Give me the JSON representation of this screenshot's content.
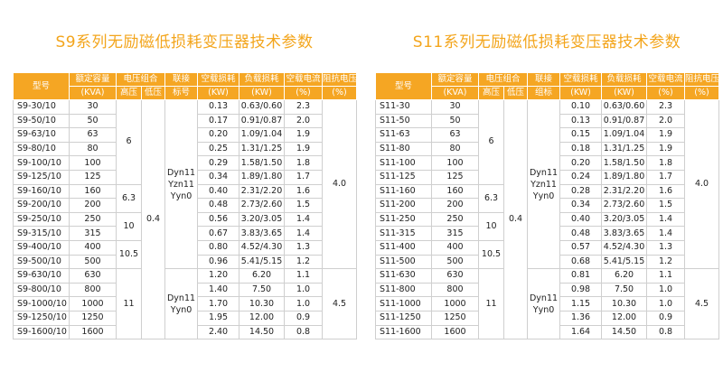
{
  "tables": [
    {
      "title": "S9系列无励磁低损耗变压器技术参数",
      "header": {
        "model": "型号",
        "capacity": "额定容量",
        "capacity_unit": "(KVA)",
        "voltage_group": "电压组合",
        "hv": "高压",
        "lv": "低压",
        "coupling": "联接",
        "coupling_sub": "标号",
        "noload": "空载损耗",
        "noload_unit": "(KW)",
        "load": "负载损耗",
        "load_unit": "(KW)",
        "current": "空载电流",
        "current_unit": "(%)",
        "impedance": "阻抗电压",
        "impedance_unit": "(%)"
      },
      "rows": [
        [
          "S9-30/10",
          "30",
          "0.13",
          "0.63/0.60",
          "2.3"
        ],
        [
          "S9-50/10",
          "50",
          "0.17",
          "0.91/0.87",
          "2.0"
        ],
        [
          "S9-63/10",
          "63",
          "0.20",
          "1.09/1.04",
          "1.9"
        ],
        [
          "S9-80/10",
          "80",
          "0.25",
          "1.31/1.25",
          "1.9"
        ],
        [
          "S9-100/10",
          "100",
          "0.29",
          "1.58/1.50",
          "1.8"
        ],
        [
          "S9-125/10",
          "125",
          "0.34",
          "1.89/1.80",
          "1.7"
        ],
        [
          "S9-160/10",
          "160",
          "0.40",
          "2.31/2.20",
          "1.6"
        ],
        [
          "S9-200/10",
          "200",
          "0.48",
          "2.73/2.60",
          "1.5"
        ],
        [
          "S9-250/10",
          "250",
          "0.56",
          "3.20/3.05",
          "1.4"
        ],
        [
          "S9-315/10",
          "315",
          "0.67",
          "3.83/3.65",
          "1.4"
        ],
        [
          "S9-400/10",
          "400",
          "0.80",
          "4.52/4.30",
          "1.3"
        ],
        [
          "S9-500/10",
          "500",
          "0.96",
          "5.41/5.15",
          "1.2"
        ],
        [
          "S9-630/10",
          "630",
          "1.20",
          "6.20",
          "1.1"
        ],
        [
          "S9-800/10",
          "800",
          "1.40",
          "7.50",
          "1.0"
        ],
        [
          "S9-1000/10",
          "1000",
          "1.70",
          "10.30",
          "1.0"
        ],
        [
          "S9-1250/10",
          "1250",
          "1.95",
          "12.00",
          "0.9"
        ],
        [
          "S9-1600/10",
          "1600",
          "2.40",
          "14.50",
          "0.8"
        ]
      ],
      "merged": {
        "hv_6": "6",
        "hv_63": "6.3",
        "hv_10": "10",
        "hv_105": "10.5",
        "hv_11": "11",
        "lv": "0.4",
        "coupling_a_1": "Dyn11",
        "coupling_a_2": "Yzn11",
        "coupling_a_3": "Yyn0",
        "coupling_b_1": "Dyn11",
        "coupling_b_2": "Yyn0",
        "impedance_a": "4.0",
        "impedance_b": "4.5"
      }
    },
    {
      "title": "S11系列无励磁低损耗变压器技术参数",
      "header": {
        "model": "型号",
        "capacity": "额定容量",
        "capacity_unit": "(KVA)",
        "voltage_group": "电压组合",
        "hv": "高压",
        "lv": "低压",
        "coupling": "联接",
        "coupling_sub": "组标",
        "noload": "空载损耗",
        "noload_unit": "(KW)",
        "load": "负载损耗",
        "load_unit": "(KW)",
        "current": "空载电流",
        "current_unit": "(%)",
        "impedance": "阻抗电压",
        "impedance_unit": "(%)"
      },
      "rows": [
        [
          "S11-30",
          "30",
          "0.10",
          "0.63/0.60",
          "2.3"
        ],
        [
          "S11-50",
          "50",
          "0.13",
          "0.91/0.87",
          "2.0"
        ],
        [
          "S11-63",
          "63",
          "0.15",
          "1.09/1.04",
          "1.9"
        ],
        [
          "S11-80",
          "80",
          "0.18",
          "1.31/1.25",
          "1.9"
        ],
        [
          "S11-100",
          "100",
          "0.20",
          "1.58/1.50",
          "1.8"
        ],
        [
          "S11-125",
          "125",
          "0.24",
          "1.89/1.80",
          "1.7"
        ],
        [
          "S11-160",
          "160",
          "0.28",
          "2.31/2.20",
          "1.6"
        ],
        [
          "S11-200",
          "200",
          "0.34",
          "2.73/2.60",
          "1.5"
        ],
        [
          "S11-250",
          "250",
          "0.40",
          "3.20/3.05",
          "1.4"
        ],
        [
          "S11-315",
          "315",
          "0.48",
          "3.83/3.65",
          "1.4"
        ],
        [
          "S11-400",
          "400",
          "0.57",
          "4.52/4.30",
          "1.3"
        ],
        [
          "S11-500",
          "500",
          "0.68",
          "5.41/5.15",
          "1.2"
        ],
        [
          "S11-630",
          "630",
          "0.81",
          "6.20",
          "1.1"
        ],
        [
          "S11-800",
          "800",
          "0.98",
          "7.50",
          "1.0"
        ],
        [
          "S11-1000",
          "1000",
          "1.15",
          "10.30",
          "1.0"
        ],
        [
          "S11-1250",
          "1250",
          "1.36",
          "12.00",
          "0.9"
        ],
        [
          "S11-1600",
          "1600",
          "1.64",
          "14.50",
          "0.8"
        ]
      ],
      "merged": {
        "hv_6": "6",
        "hv_63": "6.3",
        "hv_10": "10",
        "hv_105": "10.5",
        "hv_11": "11",
        "lv": "0.4",
        "coupling_a_1": "Dyn11",
        "coupling_a_2": "Yzn11",
        "coupling_a_3": "Yyn0",
        "coupling_b_1": "Dyn11",
        "coupling_b_2": "Yyn0",
        "impedance_a": "4.0",
        "impedance_b": "4.5"
      }
    }
  ]
}
